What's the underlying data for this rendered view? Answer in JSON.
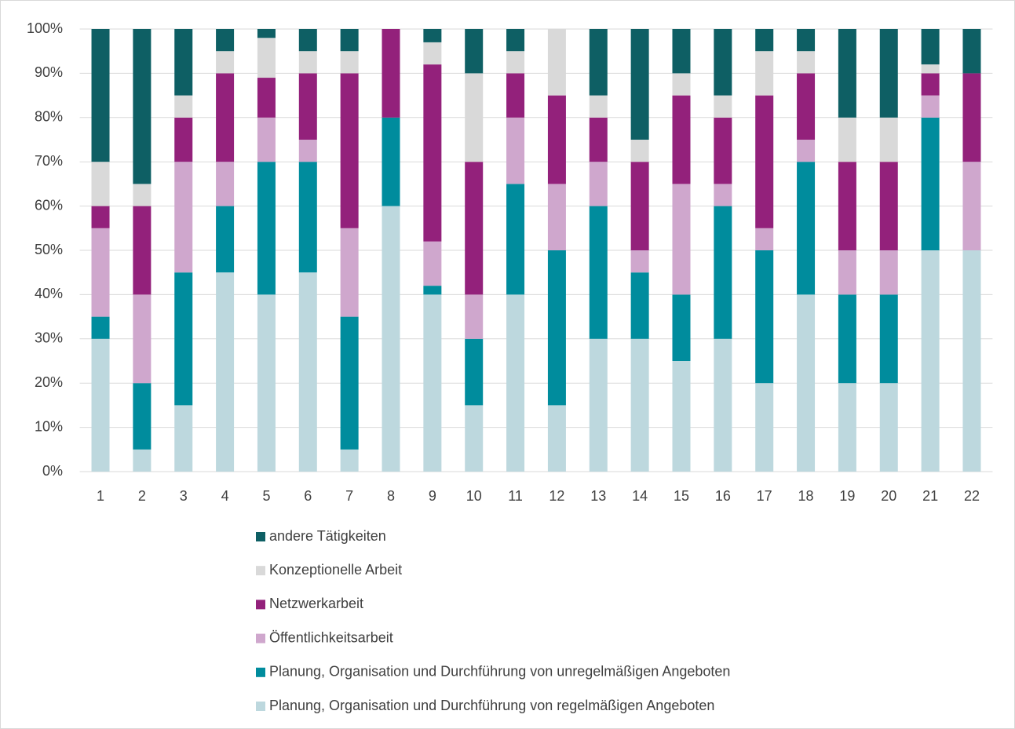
{
  "chart_data": {
    "type": "stacked_bar",
    "categories": [
      "1",
      "2",
      "3",
      "4",
      "5",
      "6",
      "7",
      "8",
      "9",
      "10",
      "11",
      "12",
      "13",
      "14",
      "15",
      "16",
      "17",
      "18",
      "19",
      "20",
      "21",
      "22"
    ],
    "series": [
      {
        "name": "Planung, Organisation und Durchführung von regelmäßigen Angeboten",
        "color": "#bdd8de",
        "values": [
          30,
          5,
          15,
          45,
          40,
          45,
          5,
          60,
          40,
          15,
          40,
          15,
          30,
          30,
          25,
          30,
          20,
          40,
          20,
          20,
          50,
          50
        ]
      },
      {
        "name": "Planung, Organisation und Durchführung von unregelmäßigen Angeboten",
        "color": "#008c9d",
        "values": [
          5,
          15,
          30,
          15,
          30,
          25,
          30,
          20,
          2,
          15,
          25,
          35,
          30,
          15,
          15,
          30,
          30,
          30,
          20,
          20,
          30,
          0
        ]
      },
      {
        "name": "Öffentlichkeitsarbeit",
        "color": "#cfa7cd",
        "values": [
          20,
          20,
          25,
          10,
          10,
          5,
          20,
          0,
          10,
          10,
          15,
          15,
          10,
          5,
          25,
          5,
          5,
          5,
          10,
          10,
          5,
          20
        ]
      },
      {
        "name": "Netzwerkarbeit",
        "color": "#93217b",
        "values": [
          5,
          20,
          10,
          20,
          9,
          15,
          35,
          20,
          40,
          30,
          10,
          20,
          10,
          20,
          20,
          15,
          30,
          15,
          20,
          20,
          5,
          20
        ]
      },
      {
        "name": "Konzeptionelle Arbeit",
        "color": "#d9d9d9",
        "values": [
          10,
          5,
          5,
          5,
          9,
          5,
          5,
          0,
          5,
          20,
          5,
          15,
          5,
          5,
          5,
          5,
          10,
          5,
          10,
          10,
          2,
          0
        ]
      },
      {
        "name": "andere Tätigkeiten",
        "color": "#0e5f64",
        "values": [
          30,
          35,
          15,
          5,
          2,
          5,
          5,
          0,
          3,
          10,
          5,
          0,
          15,
          25,
          10,
          15,
          5,
          5,
          20,
          20,
          8,
          10
        ]
      }
    ],
    "ylim": [
      0,
      100
    ],
    "yticks": [
      {
        "value": 0,
        "label": "0%"
      },
      {
        "value": 10,
        "label": "10%"
      },
      {
        "value": 20,
        "label": "20%"
      },
      {
        "value": 30,
        "label": "30%"
      },
      {
        "value": 40,
        "label": "40%"
      },
      {
        "value": 50,
        "label": "50%"
      },
      {
        "value": 60,
        "label": "60%"
      },
      {
        "value": 70,
        "label": "70%"
      },
      {
        "value": 80,
        "label": "80%"
      },
      {
        "value": 90,
        "label": "90%"
      },
      {
        "value": 100,
        "label": "100%"
      }
    ],
    "grid": true,
    "legend": "bottom"
  }
}
